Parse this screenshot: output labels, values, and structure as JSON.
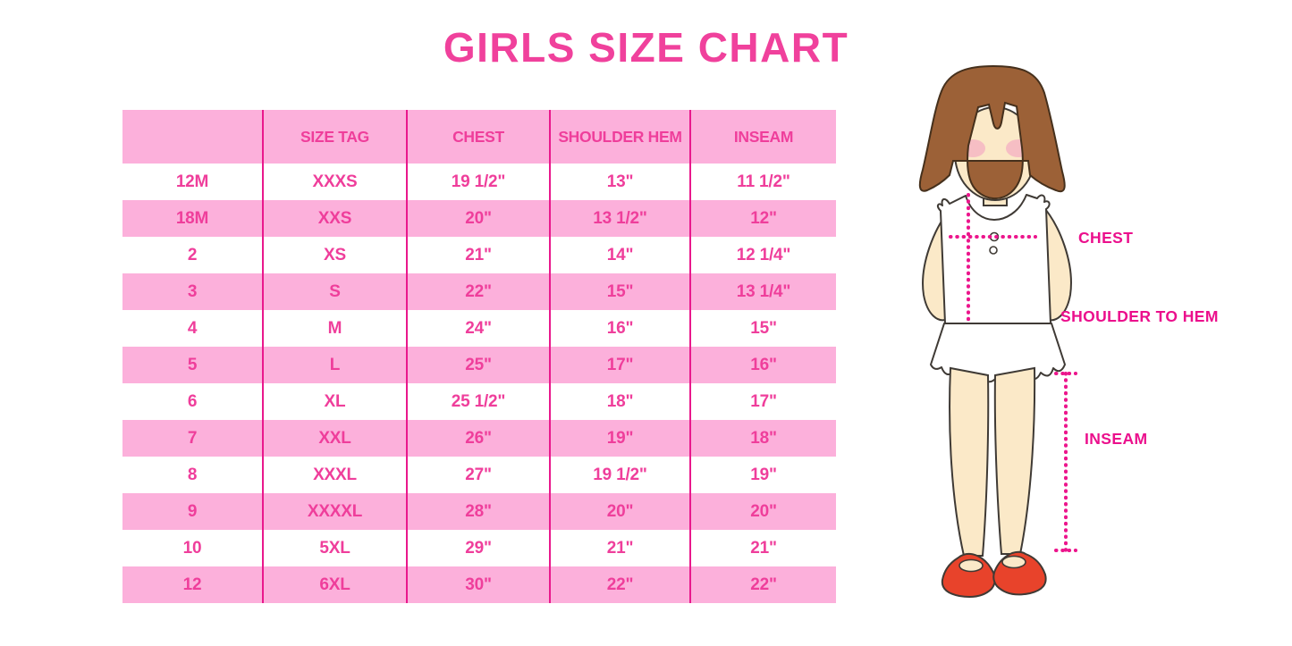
{
  "title": "GIRLS SIZE CHART",
  "chart_data": {
    "type": "table",
    "title": "GIRLS SIZE CHART",
    "columns": [
      "",
      "SIZE TAG",
      "CHEST",
      "SHOULDER HEM",
      "INSEAM"
    ],
    "rows": [
      [
        "12M",
        "XXXS",
        "19 1/2\"",
        "13\"",
        "11 1/2\""
      ],
      [
        "18M",
        "XXS",
        "20\"",
        "13 1/2\"",
        "12\""
      ],
      [
        "2",
        "XS",
        "21\"",
        "14\"",
        "12 1/4\""
      ],
      [
        "3",
        "S",
        "22\"",
        "15\"",
        "13 1/4\""
      ],
      [
        "4",
        "M",
        "24\"",
        "16\"",
        "15\""
      ],
      [
        "5",
        "L",
        "25\"",
        "17\"",
        "16\""
      ],
      [
        "6",
        "XL",
        "25 1/2\"",
        "18\"",
        "17\""
      ],
      [
        "7",
        "XXL",
        "26\"",
        "19\"",
        "18\""
      ],
      [
        "8",
        "XXXL",
        "27\"",
        "19 1/2\"",
        "19\""
      ],
      [
        "9",
        "XXXXL",
        "28\"",
        "20\"",
        "20\""
      ],
      [
        "10",
        "5XL",
        "29\"",
        "21\"",
        "21\""
      ],
      [
        "12",
        "6XL",
        "30\"",
        "22\"",
        "22\""
      ]
    ]
  },
  "figure": {
    "labels": {
      "chest": "CHEST",
      "shoulder_to_hem": "SHOULDER TO HEM",
      "inseam": "INSEAM"
    }
  },
  "colors": {
    "title_pink": "#F0419C",
    "row_pink": "#FCB0DB",
    "cell_text_pink": "#EF3E9B",
    "separator_magenta": "#E9188C",
    "label_magenta": "#EB0F8C",
    "hair_brown": "#9C6137",
    "skin": "#FBE9C8",
    "blush": "#F4B6C3",
    "shoe_red": "#E8432B"
  }
}
